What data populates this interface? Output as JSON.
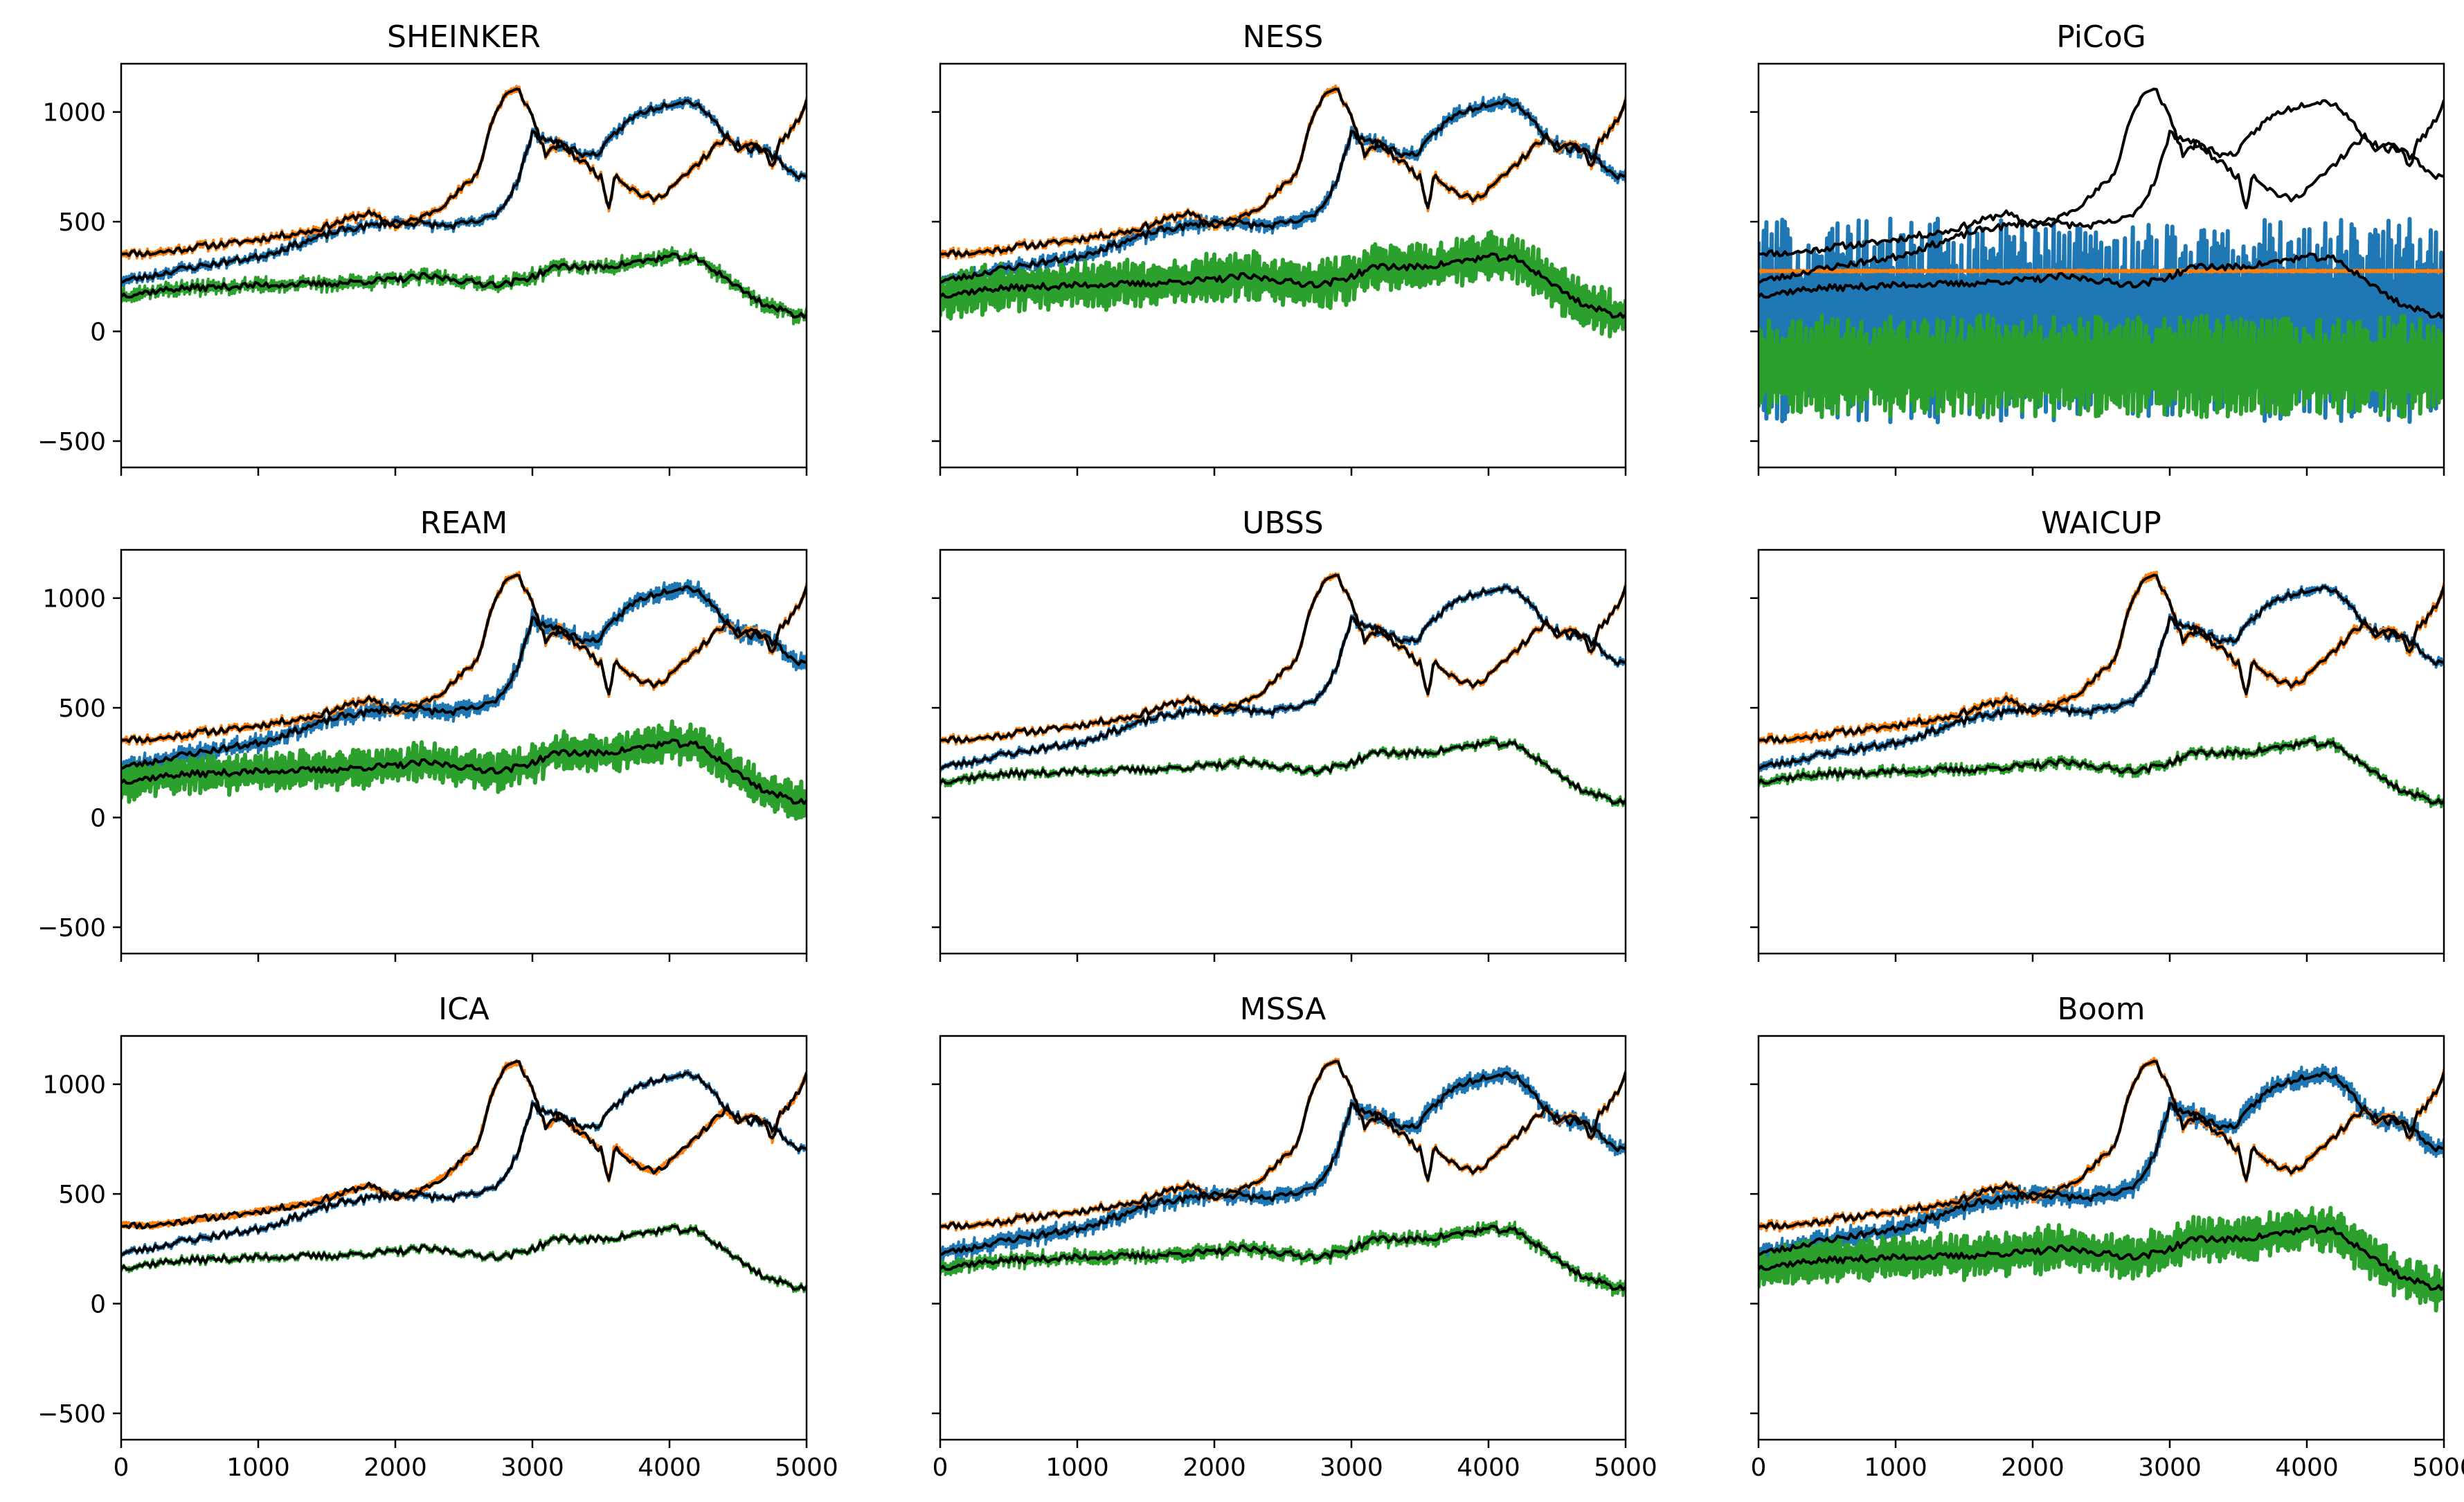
{
  "chart_data": {
    "type": "line",
    "layout": "3x3 grid of subplots, shared x and y axes",
    "x_range": [
      0,
      5000
    ],
    "y_range": [
      -620,
      1220
    ],
    "x_ticks": [
      0,
      1000,
      2000,
      3000,
      4000,
      5000
    ],
    "y_ticks": [
      -500,
      0,
      500,
      1000
    ],
    "grid": false,
    "legend": "none",
    "colors": {
      "blue": "#1f77b4",
      "orange": "#ff7f0e",
      "green": "#2ca02c",
      "black": "#000000"
    },
    "reference_series_black": {
      "top": {
        "x": [
          0,
          200,
          400,
          600,
          800,
          1000,
          1200,
          1400,
          1600,
          1800,
          2000,
          2200,
          2400,
          2600,
          2700,
          2800,
          2900,
          3000,
          3100,
          3200,
          3300,
          3400,
          3500,
          3560,
          3600,
          3700,
          3800,
          3900,
          4000,
          4100,
          4200,
          4300,
          4400,
          4500,
          4600,
          4700,
          4750,
          4800,
          4900,
          5000
        ],
        "y": [
          360,
          355,
          370,
          390,
          400,
          420,
          440,
          460,
          500,
          540,
          480,
          520,
          600,
          720,
          950,
          1080,
          1100,
          980,
          800,
          860,
          800,
          760,
          700,
          560,
          720,
          660,
          620,
          600,
          650,
          700,
          760,
          820,
          880,
          830,
          860,
          820,
          740,
          860,
          920,
          1040
        ]
      },
      "middle": {
        "x": [
          0,
          200,
          400,
          600,
          800,
          1000,
          1200,
          1400,
          1600,
          1800,
          2000,
          2200,
          2400,
          2600,
          2700,
          2800,
          2900,
          3000,
          3100,
          3200,
          3300,
          3400,
          3500,
          3600,
          3700,
          3800,
          3900,
          4000,
          4100,
          4200,
          4300,
          4400,
          4500,
          4600,
          4700,
          4800,
          4900,
          5000
        ],
        "y": [
          230,
          250,
          280,
          300,
          320,
          340,
          380,
          420,
          460,
          480,
          500,
          490,
          480,
          500,
          520,
          580,
          700,
          900,
          880,
          850,
          830,
          800,
          820,
          900,
          960,
          1000,
          1020,
          1040,
          1050,
          1040,
          980,
          900,
          850,
          830,
          820,
          780,
          720,
          700
        ]
      },
      "bottom": {
        "x": [
          0,
          200,
          400,
          600,
          800,
          1000,
          1200,
          1400,
          1600,
          1800,
          2000,
          2200,
          2400,
          2600,
          2800,
          3000,
          3200,
          3400,
          3600,
          3800,
          4000,
          4200,
          4400,
          4500,
          4600,
          4700,
          4800,
          4900,
          5000
        ],
        "y": [
          165,
          180,
          195,
          200,
          205,
          210,
          215,
          215,
          220,
          230,
          235,
          250,
          240,
          220,
          215,
          250,
          300,
          290,
          300,
          320,
          340,
          330,
          250,
          200,
          160,
          120,
          100,
          80,
          70
        ]
      }
    },
    "subplots": [
      {
        "title": "SHEINKER",
        "row": 0,
        "col": 0,
        "estimates": [
          {
            "color": "#1f77b4",
            "follows": "middle",
            "offset": 0,
            "spread": 14
          },
          {
            "color": "#ff7f0e",
            "follows": "top",
            "offset": 0,
            "spread": 10
          },
          {
            "color": "#2ca02c",
            "follows": "bottom",
            "offset": 0,
            "spread": 22
          }
        ]
      },
      {
        "title": "NESS",
        "row": 0,
        "col": 1,
        "estimates": [
          {
            "color": "#1f77b4",
            "follows": "middle",
            "offset": 0,
            "spread": 20
          },
          {
            "color": "#ff7f0e",
            "follows": "top",
            "offset": 0,
            "spread": 10
          },
          {
            "color": "#2ca02c",
            "follows": "bottom",
            "offset": 0,
            "spread": 75
          }
        ]
      },
      {
        "title": "PiCoG",
        "row": 0,
        "col": 2,
        "estimates": [
          {
            "color": "#1f77b4",
            "follows": "constant",
            "offset": 50,
            "spread": 320
          },
          {
            "color": "#2ca02c",
            "follows": "constant",
            "offset": -160,
            "spread": 160
          },
          {
            "color": "#ff7f0e",
            "follows": "constant",
            "offset": 275,
            "spread": 4
          }
        ]
      },
      {
        "title": "REAM",
        "row": 1,
        "col": 0,
        "estimates": [
          {
            "color": "#1f77b4",
            "follows": "middle",
            "offset": 0,
            "spread": 25
          },
          {
            "color": "#ff7f0e",
            "follows": "top",
            "offset": 0,
            "spread": 10
          },
          {
            "color": "#2ca02c",
            "follows": "bottom",
            "offset": 0,
            "spread": 60
          }
        ]
      },
      {
        "title": "UBSS",
        "row": 1,
        "col": 1,
        "estimates": [
          {
            "color": "#1f77b4",
            "follows": "middle",
            "offset": 0,
            "spread": 10
          },
          {
            "color": "#ff7f0e",
            "follows": "top",
            "offset": 0,
            "spread": 8
          },
          {
            "color": "#2ca02c",
            "follows": "bottom",
            "offset": 0,
            "spread": 10
          }
        ]
      },
      {
        "title": "WAICUP",
        "row": 1,
        "col": 2,
        "estimates": [
          {
            "color": "#1f77b4",
            "follows": "middle",
            "offset": 0,
            "spread": 12
          },
          {
            "color": "#ff7f0e",
            "follows": "top",
            "offset": 0,
            "spread": 12
          },
          {
            "color": "#2ca02c",
            "follows": "bottom",
            "offset": 0,
            "spread": 14
          }
        ]
      },
      {
        "title": "ICA",
        "row": 2,
        "col": 0,
        "estimates": [
          {
            "color": "#1f77b4",
            "follows": "middle",
            "offset": 0,
            "spread": 8
          },
          {
            "color": "#ff7f0e",
            "follows": "top_smooth",
            "offset": 0,
            "spread": 10
          },
          {
            "color": "#2ca02c",
            "follows": "bottom",
            "offset": 0,
            "spread": 8
          }
        ]
      },
      {
        "title": "MSSA",
        "row": 2,
        "col": 1,
        "estimates": [
          {
            "color": "#1f77b4",
            "follows": "middle",
            "offset": 0,
            "spread": 25
          },
          {
            "color": "#ff7f0e",
            "follows": "top",
            "offset": 0,
            "spread": 8
          },
          {
            "color": "#2ca02c",
            "follows": "bottom",
            "offset": 0,
            "spread": 20
          }
        ]
      },
      {
        "title": "Boom",
        "row": 2,
        "col": 2,
        "estimates": [
          {
            "color": "#1f77b4",
            "follows": "middle",
            "offset": 0,
            "spread": 30
          },
          {
            "color": "#ff7f0e",
            "follows": "top",
            "offset": 0,
            "spread": 10
          },
          {
            "color": "#2ca02c",
            "follows": "bottom",
            "offset": 0,
            "spread": 70
          }
        ]
      }
    ]
  }
}
